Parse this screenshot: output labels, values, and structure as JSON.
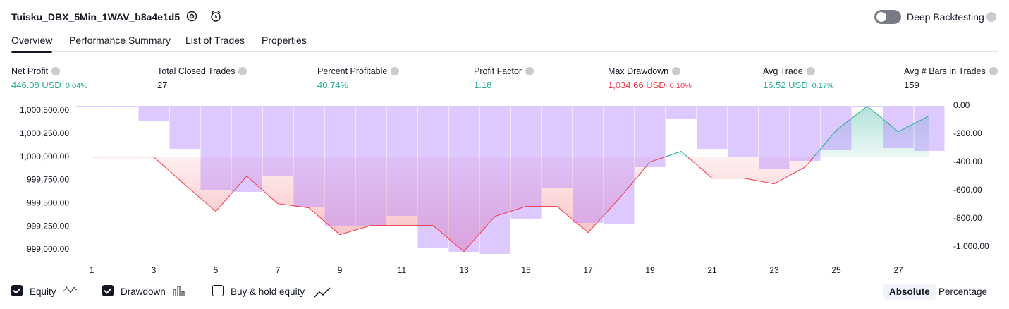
{
  "header": {
    "title": "Tuisku_DBX_5Min_1WAV_b8a4e1d5",
    "deep_backtesting": "Deep Backtesting",
    "deep_backtesting_on": false
  },
  "tabs": {
    "items": [
      "Overview",
      "Performance Summary",
      "List of Trades",
      "Properties"
    ],
    "active": 0
  },
  "metrics": [
    {
      "label": "Net Profit",
      "value": "446.08 USD",
      "percent": "0.04%",
      "color": "#22ab94"
    },
    {
      "label": "Total Closed Trades",
      "value": "27",
      "color": "#131722"
    },
    {
      "label": "Percent Profitable",
      "value": "40.74%",
      "color": "#22ab94"
    },
    {
      "label": "Profit Factor",
      "value": "1.18",
      "color": "#22ab94"
    },
    {
      "label": "Max Drawdown",
      "value": "1,034.66 USD",
      "percent": "0.10%",
      "color": "#f23645"
    },
    {
      "label": "Avg Trade",
      "value": "16.52 USD",
      "percent": "0.17%",
      "color": "#22ab94"
    },
    {
      "label": "Avg # Bars in Trades",
      "value": "159",
      "color": "#131722"
    }
  ],
  "chart_data": {
    "type": "equity_drawdown",
    "x": [
      1,
      2,
      3,
      4,
      5,
      6,
      7,
      8,
      9,
      10,
      11,
      12,
      13,
      14,
      15,
      16,
      17,
      18,
      19,
      20,
      21,
      22,
      23,
      24,
      25,
      26,
      27,
      28
    ],
    "xlim": [
      0.5,
      28.5
    ],
    "xticks": [
      1,
      3,
      5,
      7,
      9,
      11,
      13,
      15,
      17,
      19,
      21,
      23,
      25,
      27
    ],
    "series": [
      {
        "name": "Equity",
        "checked": true,
        "color_up": "#22ab94",
        "color_down": "#f23645",
        "values": [
          1000000,
          1000000,
          1000000,
          999703,
          999413,
          999794,
          999497,
          999452,
          999162,
          999261,
          999261,
          999261,
          998980,
          999360,
          999467,
          999467,
          999185,
          999551,
          999947,
          1000061,
          999772,
          999772,
          999711,
          999893,
          1000289,
          1000548,
          1000274,
          1000446
        ]
      },
      {
        "name": "Drawdown",
        "checked": true,
        "axis": "y2",
        "color": "#b388ff",
        "values": [
          0,
          0,
          -105,
          -305,
          -600,
          -610,
          -500,
          -715,
          -850,
          -855,
          -780,
          -1010,
          -1035,
          -1050,
          -805,
          -585,
          -830,
          -835,
          -435,
          -95,
          -305,
          -365,
          -445,
          -390,
          -315,
          0,
          -300,
          -320
        ]
      }
    ],
    "ylim": [
      998954,
      1000553
    ],
    "yticks": [
      {
        "value": 999000,
        "label": "999,000.00"
      },
      {
        "value": 999250,
        "label": "999,250.00"
      },
      {
        "value": 999500,
        "label": "999,500.00"
      },
      {
        "value": 999750,
        "label": "999,750.00"
      },
      {
        "value": 1000000,
        "label": "1,000,000.00"
      },
      {
        "value": 1000250,
        "label": "1,000,250.00"
      },
      {
        "value": 1000500,
        "label": "1,000,500.00"
      }
    ],
    "y2lim": [
      -1050,
      0
    ],
    "y2ticks": [
      {
        "value": 0,
        "label": "0.00"
      },
      {
        "value": -200,
        "label": "-200.00"
      },
      {
        "value": -400,
        "label": "-400.00"
      },
      {
        "value": -600,
        "label": "-600.00"
      },
      {
        "value": -800,
        "label": "-800.00"
      },
      {
        "value": -1000,
        "label": "-1,000.00"
      }
    ]
  },
  "buy_hold": {
    "name": "Buy & hold equity",
    "checked": false
  },
  "mode": {
    "options": [
      "Absolute",
      "Percentage"
    ],
    "active": 0
  }
}
